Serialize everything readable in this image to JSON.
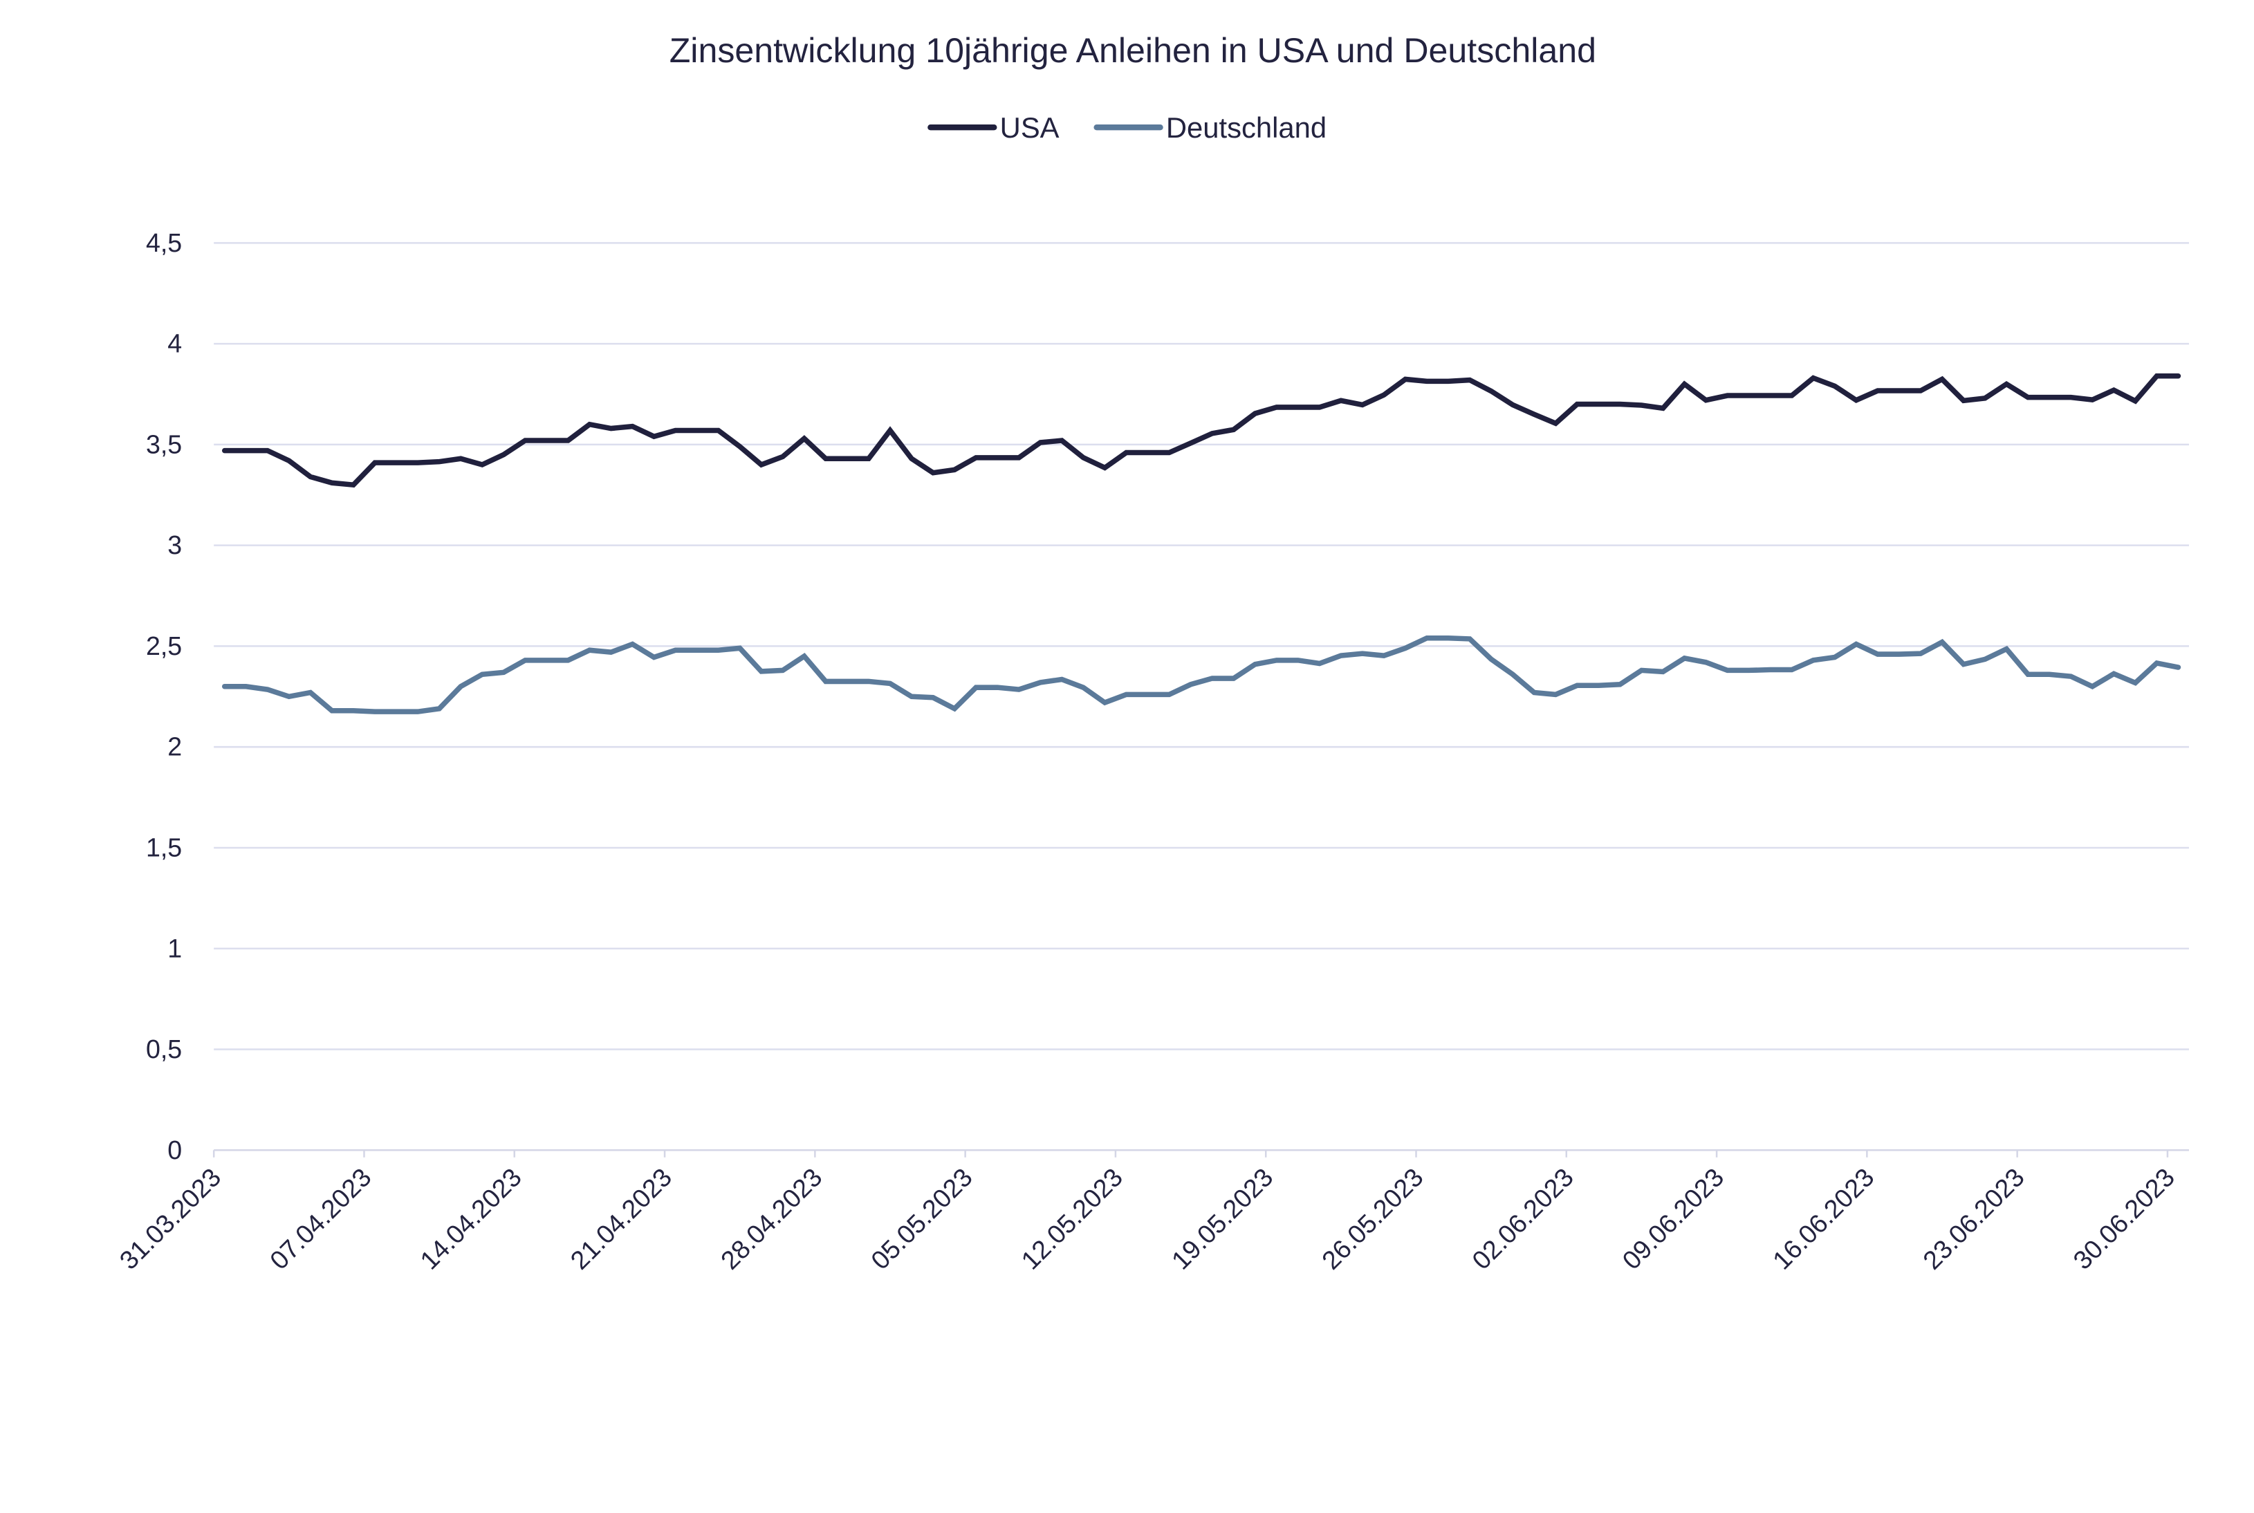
{
  "chart_data": {
    "type": "line",
    "title": "Zinsentwicklung 10jährige Anleihen in USA und Deutschland",
    "xlabel": "",
    "ylabel": "",
    "ylim": [
      0,
      4.5
    ],
    "y_ticks": [
      "0",
      "0,5",
      "1",
      "1,5",
      "2",
      "2,5",
      "3",
      "3,5",
      "4",
      "4,5"
    ],
    "y_tick_values": [
      0,
      0.5,
      1,
      1.5,
      2,
      2.5,
      3,
      3.5,
      4,
      4.5
    ],
    "x_ticks": [
      "31.03.2023",
      "07.04.2023",
      "14.04.2023",
      "21.04.2023",
      "28.04.2023",
      "05.05.2023",
      "12.05.2023",
      "19.05.2023",
      "26.05.2023",
      "02.06.2023",
      "09.06.2023",
      "16.06.2023",
      "23.06.2023",
      "30.06.2023"
    ],
    "x": [
      "31.03.2023",
      "01.04.2023",
      "02.04.2023",
      "03.04.2023",
      "04.04.2023",
      "05.04.2023",
      "06.04.2023",
      "07.04.2023",
      "08.04.2023",
      "09.04.2023",
      "10.04.2023",
      "11.04.2023",
      "12.04.2023",
      "13.04.2023",
      "14.04.2023",
      "15.04.2023",
      "16.04.2023",
      "17.04.2023",
      "18.04.2023",
      "19.04.2023",
      "20.04.2023",
      "21.04.2023",
      "22.04.2023",
      "23.04.2023",
      "24.04.2023",
      "25.04.2023",
      "26.04.2023",
      "27.04.2023",
      "28.04.2023",
      "29.04.2023",
      "30.04.2023",
      "01.05.2023",
      "02.05.2023",
      "03.05.2023",
      "04.05.2023",
      "05.05.2023",
      "06.05.2023",
      "07.05.2023",
      "08.05.2023",
      "09.05.2023",
      "10.05.2023",
      "11.05.2023",
      "12.05.2023",
      "13.05.2023",
      "14.05.2023",
      "15.05.2023",
      "16.05.2023",
      "17.05.2023",
      "18.05.2023",
      "19.05.2023",
      "20.05.2023",
      "21.05.2023",
      "22.05.2023",
      "23.05.2023",
      "24.05.2023",
      "25.05.2023",
      "26.05.2023",
      "27.05.2023",
      "28.05.2023",
      "29.05.2023",
      "30.05.2023",
      "31.05.2023",
      "01.06.2023",
      "02.06.2023",
      "03.06.2023",
      "04.06.2023",
      "05.06.2023",
      "06.06.2023",
      "07.06.2023",
      "08.06.2023",
      "09.06.2023",
      "10.06.2023",
      "11.06.2023",
      "12.06.2023",
      "13.06.2023",
      "14.06.2023",
      "15.06.2023",
      "16.06.2023",
      "17.06.2023",
      "18.06.2023",
      "19.06.2023",
      "20.06.2023",
      "21.06.2023",
      "22.06.2023",
      "23.06.2023",
      "24.06.2023",
      "25.06.2023",
      "26.06.2023",
      "27.06.2023",
      "28.06.2023",
      "29.06.2023",
      "30.06.2023"
    ],
    "grid": true,
    "legend_position": "top",
    "series": [
      {
        "name": "USA",
        "color": "#20203d",
        "values": [
          3.47,
          3.47,
          3.47,
          3.42,
          3.34,
          3.31,
          3.3,
          3.41,
          3.41,
          3.41,
          3.415,
          3.43,
          3.4,
          3.45,
          3.52,
          3.52,
          3.52,
          3.6,
          3.58,
          3.59,
          3.54,
          3.57,
          3.57,
          3.57,
          3.49,
          3.4,
          3.44,
          3.53,
          3.43,
          3.43,
          3.43,
          3.57,
          3.43,
          3.36,
          3.375,
          3.435,
          3.435,
          3.435,
          3.51,
          3.52,
          3.435,
          3.385,
          3.46,
          3.46,
          3.46,
          3.507,
          3.555,
          3.574,
          3.654,
          3.685,
          3.685,
          3.685,
          3.718,
          3.697,
          3.746,
          3.824,
          3.814,
          3.814,
          3.82,
          3.765,
          3.697,
          3.65,
          3.605,
          3.7,
          3.7,
          3.7,
          3.695,
          3.68,
          3.8,
          3.72,
          3.743,
          3.743,
          3.743,
          3.743,
          3.83,
          3.79,
          3.72,
          3.767,
          3.767,
          3.767,
          3.824,
          3.718,
          3.73,
          3.8,
          3.734,
          3.734,
          3.734,
          3.722,
          3.77,
          3.716,
          3.84,
          3.84
        ]
      },
      {
        "name": "Deutschland",
        "color": "#5b7a9a",
        "values": [
          2.3,
          2.3,
          2.285,
          2.25,
          2.27,
          2.18,
          2.18,
          2.175,
          2.175,
          2.175,
          2.19,
          2.3,
          2.36,
          2.37,
          2.43,
          2.43,
          2.43,
          2.48,
          2.47,
          2.51,
          2.445,
          2.48,
          2.48,
          2.48,
          2.49,
          2.375,
          2.38,
          2.45,
          2.325,
          2.325,
          2.325,
          2.315,
          2.25,
          2.245,
          2.19,
          2.295,
          2.295,
          2.285,
          2.32,
          2.335,
          2.295,
          2.22,
          2.26,
          2.26,
          2.26,
          2.31,
          2.34,
          2.34,
          2.41,
          2.43,
          2.43,
          2.414,
          2.453,
          2.463,
          2.453,
          2.49,
          2.54,
          2.54,
          2.536,
          2.435,
          2.36,
          2.27,
          2.26,
          2.305,
          2.305,
          2.31,
          2.38,
          2.373,
          2.44,
          2.42,
          2.38,
          2.38,
          2.383,
          2.383,
          2.43,
          2.445,
          2.51,
          2.46,
          2.46,
          2.463,
          2.52,
          2.41,
          2.435,
          2.486,
          2.36,
          2.36,
          2.35,
          2.3,
          2.363,
          2.318,
          2.416,
          2.395
        ]
      }
    ]
  }
}
